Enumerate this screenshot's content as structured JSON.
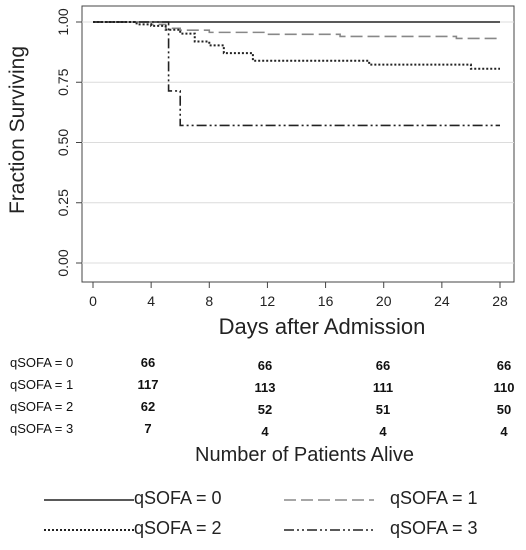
{
  "chart_data": {
    "type": "line",
    "subtype": "step",
    "ylabel": "Fraction Surviving",
    "xlabel": "Days after Admission",
    "xlim": [
      0,
      28
    ],
    "ylim": [
      0,
      1
    ],
    "x_ticks": [
      "0",
      "4",
      "8",
      "12",
      "16",
      "20",
      "24",
      "28"
    ],
    "y_ticks": [
      "0.00",
      "0.25",
      "0.50",
      "0.75",
      "1.00"
    ],
    "grid": "horizontal",
    "series": [
      {
        "name": "qSOFA = 0",
        "color": "#222222",
        "dash": "solid",
        "x": [
          0,
          28
        ],
        "y": [
          1.0,
          1.0
        ]
      },
      {
        "name": "qSOFA = 1",
        "color": "#888888",
        "dash": "dashed",
        "x": [
          0,
          4,
          5,
          6,
          8,
          12,
          16,
          17,
          19,
          25,
          28
        ],
        "y": [
          1.0,
          0.99,
          0.974,
          0.966,
          0.957,
          0.949,
          0.949,
          0.94,
          0.94,
          0.932,
          0.932
        ]
      },
      {
        "name": "qSOFA = 2",
        "color": "#222222",
        "dash": "dotted",
        "x": [
          0,
          3,
          4,
          5,
          6,
          7,
          8,
          9,
          11,
          19,
          26,
          28
        ],
        "y": [
          1.0,
          0.99,
          0.984,
          0.968,
          0.952,
          0.919,
          0.903,
          0.871,
          0.839,
          0.823,
          0.806,
          0.806
        ]
      },
      {
        "name": "qSOFA = 3",
        "color": "#222222",
        "dash": "dash-dot",
        "x": [
          0,
          5,
          5.2,
          6,
          28
        ],
        "y": [
          1.0,
          1.0,
          0.714,
          0.571,
          0.571
        ]
      }
    ]
  },
  "risk_table": {
    "title": "Number of Patients Alive",
    "rows": [
      {
        "label": "qSOFA = 0",
        "values": [
          "66",
          "66",
          "66",
          "66"
        ]
      },
      {
        "label": "qSOFA = 1",
        "values": [
          "117",
          "113",
          "111",
          "110"
        ]
      },
      {
        "label": "qSOFA = 2",
        "values": [
          "62",
          "52",
          "51",
          "50"
        ]
      },
      {
        "label": "qSOFA = 3",
        "values": [
          "7",
          "4",
          "4",
          "4"
        ]
      }
    ]
  },
  "legend": {
    "items": [
      {
        "label": "qSOFA = 0",
        "dash": "solid",
        "color": "#222222"
      },
      {
        "label": "qSOFA = 1",
        "dash": "dashed",
        "color": "#888888"
      },
      {
        "label": "qSOFA = 2",
        "dash": "dotted",
        "color": "#222222"
      },
      {
        "label": "qSOFA = 3",
        "dash": "dash-dot",
        "color": "#222222"
      }
    ]
  }
}
